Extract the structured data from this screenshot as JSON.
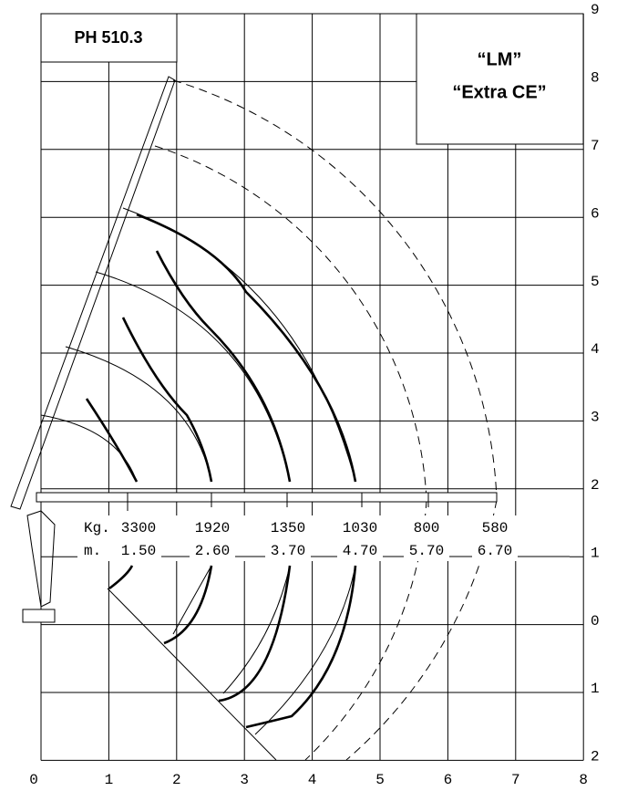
{
  "header": {
    "title": "PH 510.3"
  },
  "badge": {
    "lines": [
      "“LM”",
      "“Extra CE”"
    ]
  },
  "load_table": {
    "load_label": "Kg.",
    "distance_label": "m.",
    "loads": [
      "3300",
      "1920",
      "1350",
      "1030",
      "800",
      "580"
    ],
    "distances": [
      "1.50",
      "2.60",
      "3.70",
      "4.70",
      "5.70",
      "6.70"
    ]
  },
  "axes": {
    "x_labels": [
      "0",
      "1",
      "2",
      "3",
      "4",
      "5",
      "6",
      "7",
      "8"
    ],
    "y_labels": [
      "9",
      "8",
      "7",
      "6",
      "5",
      "4",
      "3",
      "2",
      "1",
      "0",
      "1",
      "2"
    ]
  }
}
